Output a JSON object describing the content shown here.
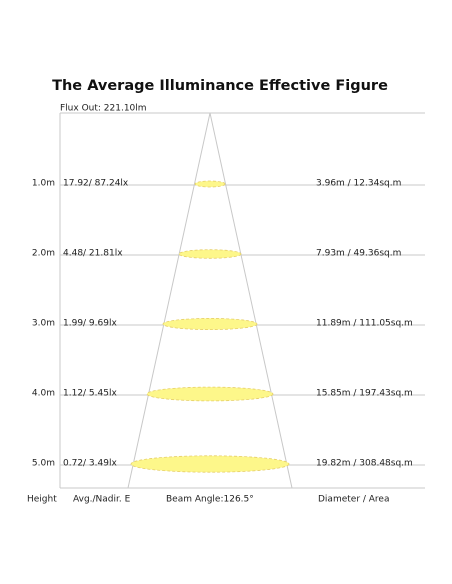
{
  "title": "The Average Illuminance Effective Figure",
  "flux": "Flux Out: 221.10lm",
  "rows": [
    {
      "height": "1.0m",
      "illuminance": "17.92/ 87.24lx",
      "diameter": "3.96m / 12.34sq.m"
    },
    {
      "height": "2.0m",
      "illuminance": "4.48/ 21.81lx",
      "diameter": "7.93m / 49.36sq.m"
    },
    {
      "height": "3.0m",
      "illuminance": "1.99/ 9.69lx",
      "diameter": "11.89m / 111.05sq.m"
    },
    {
      "height": "4.0m",
      "illuminance": "1.12/ 5.45lx",
      "diameter": "15.85m / 197.43sq.m"
    },
    {
      "height": "5.0m",
      "illuminance": "0.72/ 3.49lx",
      "diameter": "19.82m / 308.48sq.m"
    }
  ],
  "footer": {
    "height": "Height",
    "illuminance": "Avg./Nadir. E",
    "beam": "Beam Angle:126.5°",
    "diameter": "Diameter / Area"
  }
}
